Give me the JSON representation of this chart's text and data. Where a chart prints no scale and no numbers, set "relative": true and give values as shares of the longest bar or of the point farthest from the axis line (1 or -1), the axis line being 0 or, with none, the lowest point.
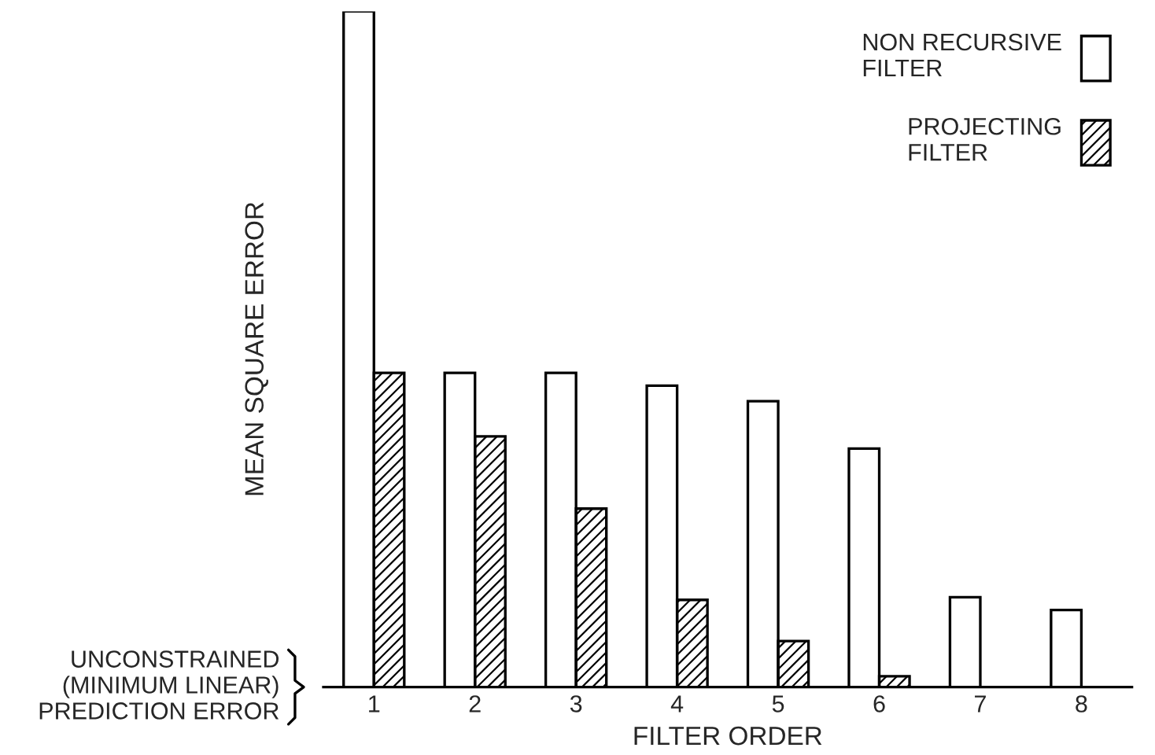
{
  "chart_data": {
    "type": "bar",
    "relative": true,
    "xlabel": "FILTER ORDER",
    "ylabel": "MEAN SQUARE ERROR",
    "categories": [
      "1",
      "2",
      "3",
      "4",
      "5",
      "6",
      "7",
      "8"
    ],
    "series": [
      {
        "name": "NON RECURSIVE\nFILTER",
        "color": "#ffffff",
        "values": [
          1,
          0.465,
          0.465,
          0.446,
          0.423,
          0.353,
          0.133,
          0.114
        ]
      },
      {
        "name": "PROJECTING\nFILTER",
        "color": "#000000",
        "values": [
          0.465,
          0.371,
          0.264,
          0.129,
          0.068,
          0.016,
          null,
          null
        ]
      }
    ],
    "annotations": [
      "UNCONSTRAINED\n(MINIMUM LINEAR)\nPREDICTION ERROR"
    ],
    "legend": "top right",
    "grid": false
  }
}
